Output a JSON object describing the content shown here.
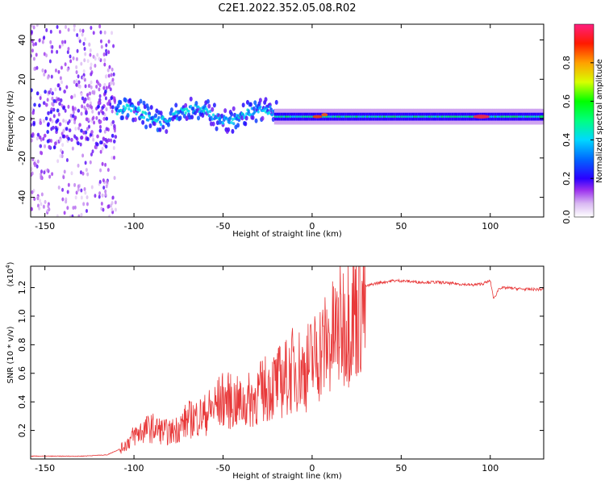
{
  "title": "C2E1.2022.352.05.08.R02",
  "chart_data": [
    {
      "type": "heatmap",
      "xlabel": "Height of straight line (km)",
      "ylabel": "Frequency (Hz)",
      "xlim": [
        -158,
        130
      ],
      "ylim": [
        -50,
        48
      ],
      "x_ticks": [
        -150,
        -100,
        -50,
        0,
        50,
        100
      ],
      "y_ticks": [
        -40,
        -20,
        0,
        20,
        40
      ],
      "colorbar": {
        "label": "Normalized spectral amplitude",
        "range": [
          0,
          1
        ],
        "ticks": [
          0.0,
          0.2,
          0.4,
          0.6,
          0.8
        ]
      },
      "features": [
        {
          "x_range": [
            -158,
            -110
          ],
          "freq_range": [
            -50,
            48
          ],
          "amplitude": 0.1,
          "description": "scattered noise"
        },
        {
          "x_range": [
            -110,
            -20
          ],
          "freq_center": 2,
          "freq_halfwidth": 6,
          "amplitude": 0.3
        },
        {
          "x_range": [
            -20,
            130
          ],
          "freq_center": 1,
          "freq_halfwidth": 2,
          "amplitude": 0.5
        },
        {
          "x": 95,
          "freq_center": 1,
          "amplitude": 0.95
        }
      ]
    },
    {
      "type": "line",
      "xlabel": "Height of straight line (km)",
      "ylabel": "SNR (10 * v/v)",
      "y_scale_label": "(x10",
      "y_scale_exp": "4",
      "xlim": [
        -158,
        130
      ],
      "ylim": [
        0,
        1.35
      ],
      "x_ticks": [
        -150,
        -100,
        -50,
        0,
        50,
        100
      ],
      "y_ticks": [
        0.2,
        0.4,
        0.6,
        0.8,
        1.0,
        1.2
      ],
      "color": "#e8393a",
      "series": [
        {
          "x": [
            -158,
            -150,
            -130,
            -115,
            -108,
            -104,
            -100,
            -95,
            -90,
            -85,
            -80,
            -75,
            -70,
            -65,
            -60,
            -55,
            -50,
            -45,
            -40,
            -35,
            -30,
            -25,
            -20,
            -15,
            -10,
            -5,
            0,
            5,
            10,
            15,
            20,
            25,
            30,
            35,
            40,
            45,
            50,
            60,
            70,
            80,
            90,
            96,
            100,
            102,
            105,
            110,
            120,
            130
          ],
          "y": [
            0.02,
            0.02,
            0.02,
            0.03,
            0.07,
            0.12,
            0.18,
            0.22,
            0.24,
            0.22,
            0.2,
            0.24,
            0.3,
            0.32,
            0.34,
            0.4,
            0.46,
            0.44,
            0.42,
            0.45,
            0.5,
            0.55,
            0.58,
            0.62,
            0.7,
            0.68,
            0.75,
            0.85,
            0.9,
            1.0,
            1.08,
            1.16,
            1.21,
            1.23,
            1.24,
            1.25,
            1.25,
            1.24,
            1.24,
            1.23,
            1.22,
            1.23,
            1.25,
            1.12,
            1.2,
            1.2,
            1.19,
            1.19
          ]
        }
      ]
    }
  ]
}
